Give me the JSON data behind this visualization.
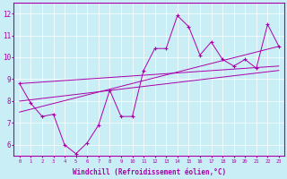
{
  "xlabel": "Windchill (Refroidissement éolien,°C)",
  "bg_color": "#caeef5",
  "line_color": "#aa00aa",
  "ylim": [
    5.5,
    12.5
  ],
  "xlim": [
    -0.5,
    23.5
  ],
  "yticks": [
    6,
    7,
    8,
    9,
    10,
    11,
    12
  ],
  "xticks": [
    0,
    1,
    2,
    3,
    4,
    5,
    6,
    7,
    8,
    9,
    10,
    11,
    12,
    13,
    14,
    15,
    16,
    17,
    18,
    19,
    20,
    21,
    22,
    23
  ],
  "series1_x": [
    0,
    1,
    2,
    3,
    4,
    5,
    6,
    7,
    8,
    9,
    10,
    11,
    12,
    13,
    14,
    15,
    16,
    17,
    18,
    19,
    20,
    21,
    22,
    23
  ],
  "series1_y": [
    8.8,
    7.9,
    7.3,
    7.4,
    6.0,
    5.6,
    6.1,
    6.9,
    8.5,
    7.3,
    7.3,
    9.4,
    10.4,
    10.4,
    11.9,
    11.4,
    10.1,
    10.7,
    9.9,
    9.6,
    9.9,
    9.5,
    11.5,
    10.5
  ],
  "series2_x": [
    0,
    23
  ],
  "series2_y": [
    8.8,
    9.6
  ],
  "series3_x": [
    0,
    23
  ],
  "series3_y": [
    8.0,
    9.4
  ],
  "series4_x": [
    0,
    23
  ],
  "series4_y": [
    7.5,
    10.5
  ]
}
